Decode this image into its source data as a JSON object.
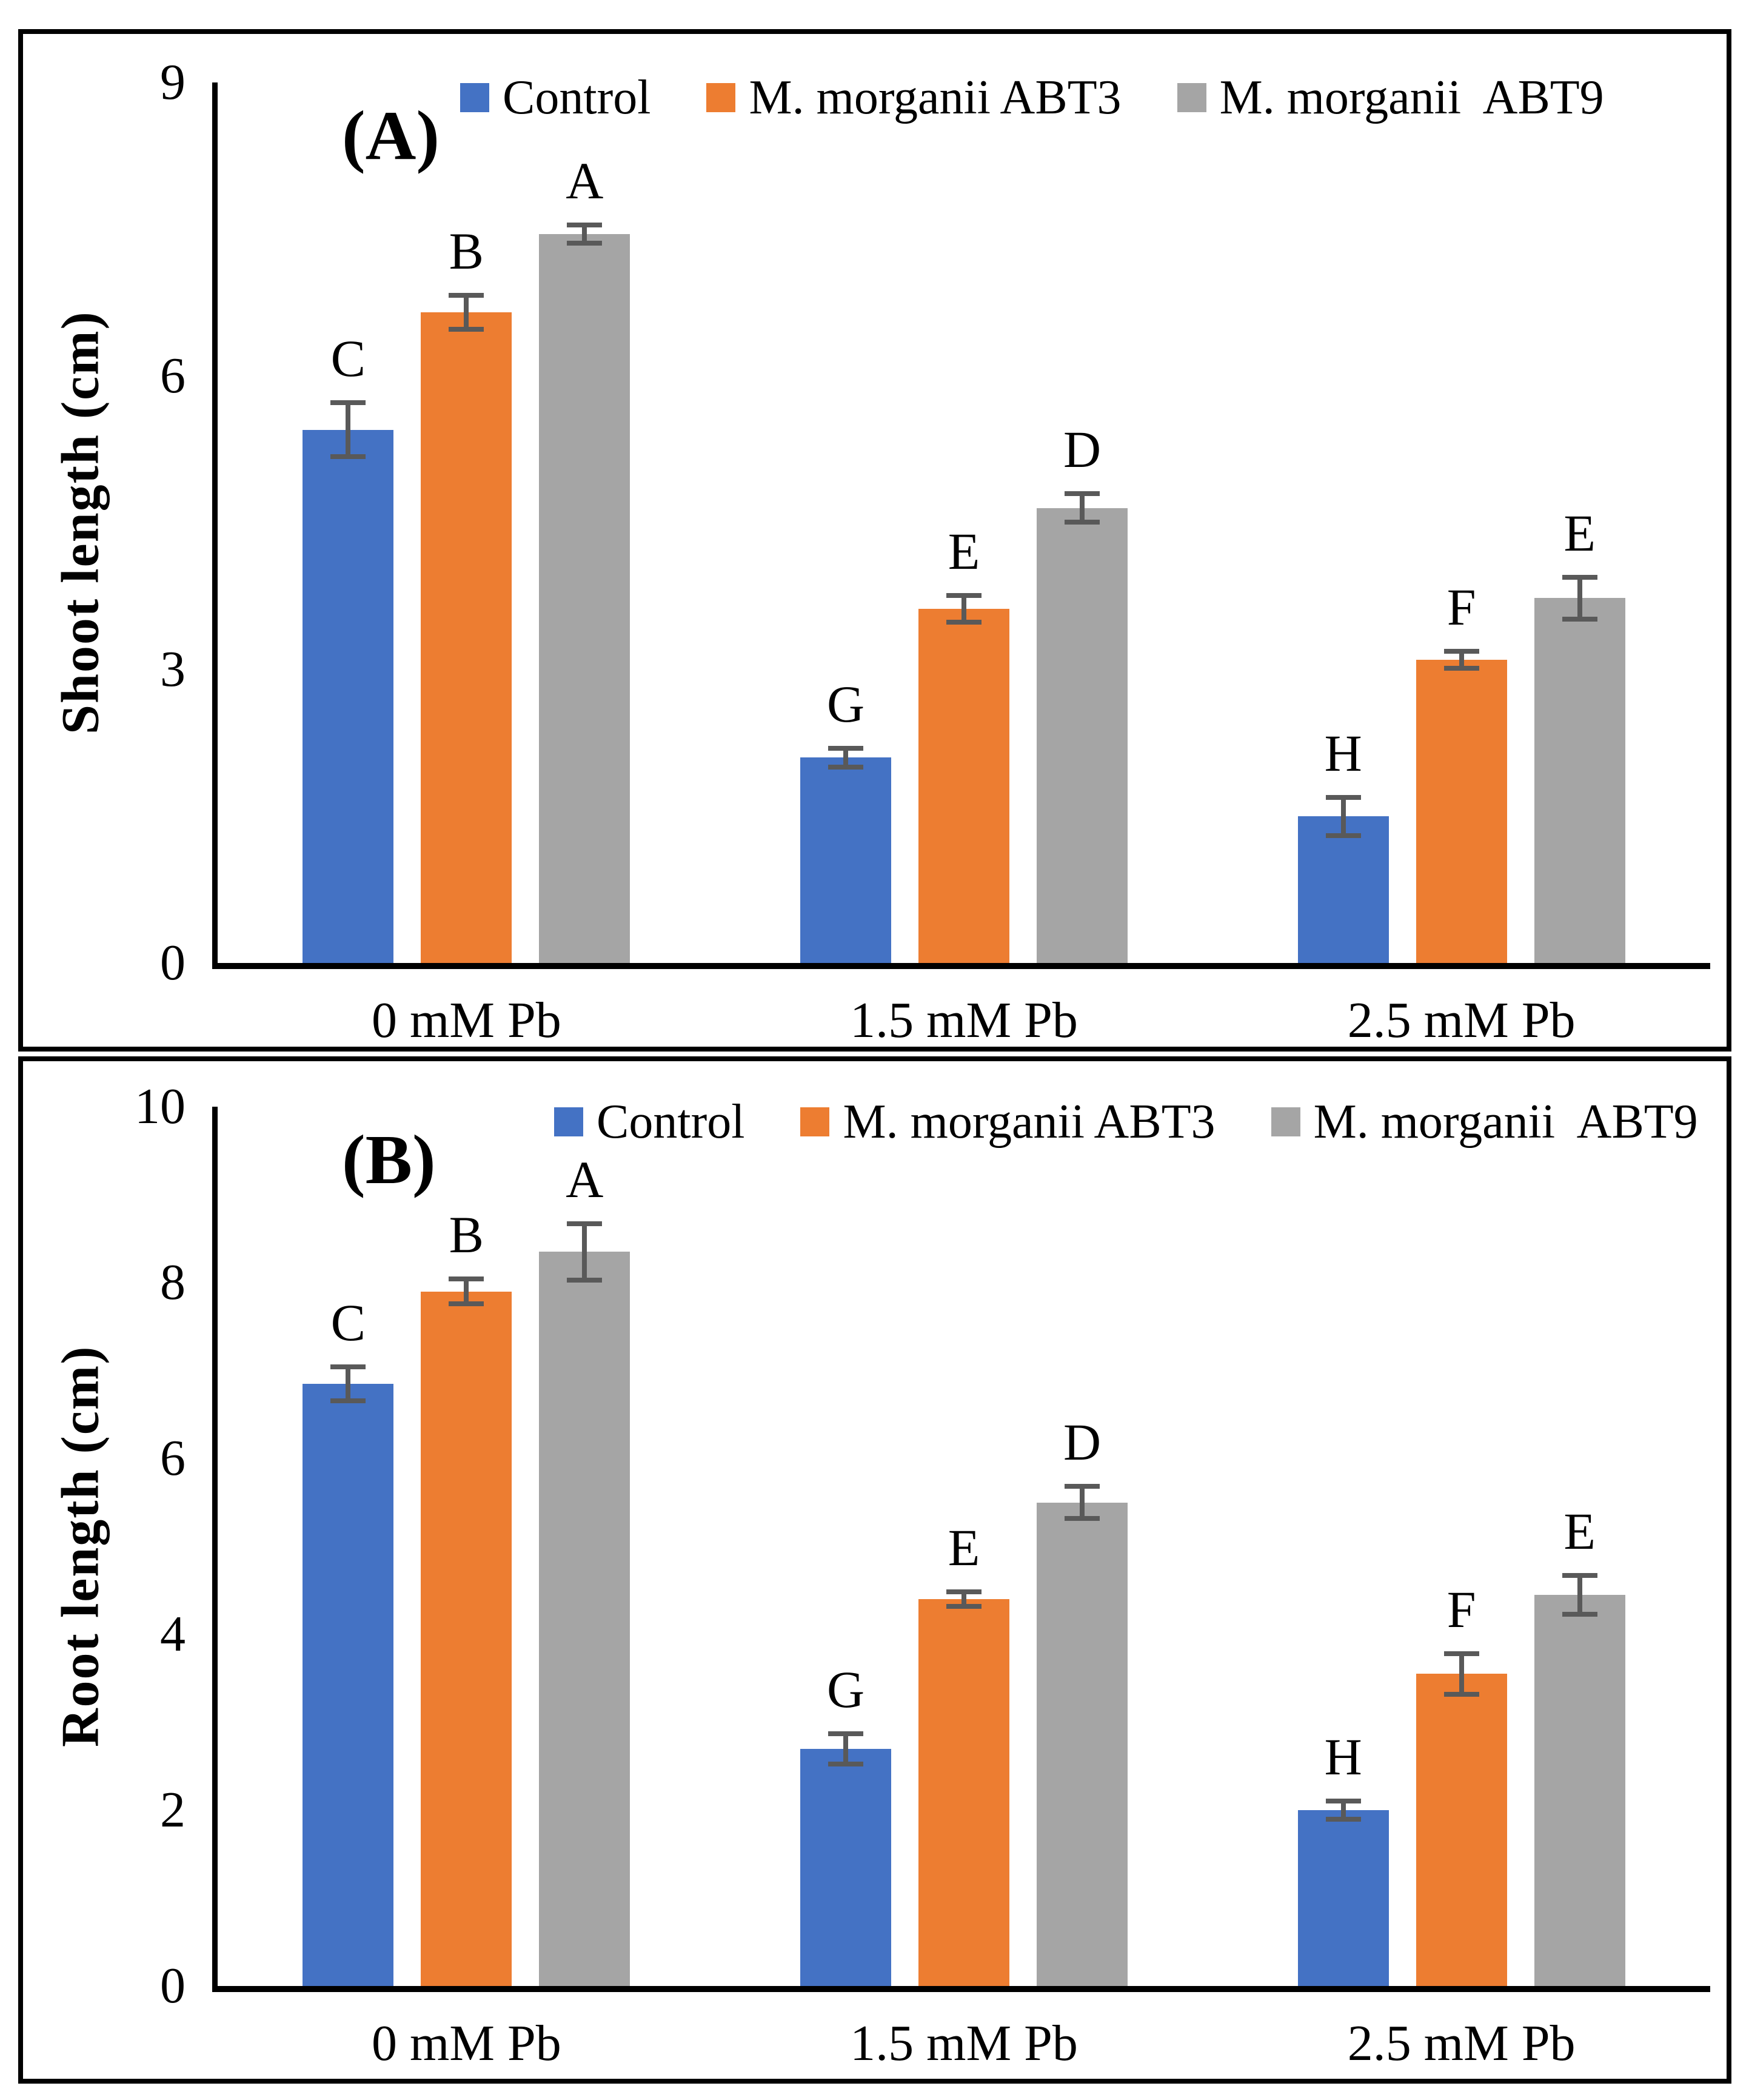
{
  "colors": {
    "control": "#4472C4",
    "abt3": "#ED7D31",
    "abt9": "#A5A5A5",
    "error_bar": "#595959",
    "axis": "#000000"
  },
  "chart_data": [
    {
      "type": "bar",
      "panel_label": "(A)",
      "ylabel": "Shoot length (cm)",
      "ylim": [
        0,
        9
      ],
      "yticks": [
        0,
        3,
        6,
        9
      ],
      "grid": false,
      "legend_position": "top-center",
      "categories": [
        "0 mM Pb",
        "1.5 mM Pb",
        "2.5 mM Pb"
      ],
      "series": [
        {
          "name": "Control",
          "color": "#4472C4",
          "values": [
            5.45,
            2.1,
            1.5
          ],
          "errors": [
            0.3,
            0.12,
            0.22
          ],
          "letters": [
            "C",
            "G",
            "H"
          ]
        },
        {
          "name": "M. morganii ABT3",
          "color": "#ED7D31",
          "values": [
            6.65,
            3.62,
            3.1
          ],
          "errors": [
            0.2,
            0.16,
            0.11
          ],
          "letters": [
            "B",
            "E",
            "F"
          ]
        },
        {
          "name": "M. morganii  ABT9",
          "color": "#A5A5A5",
          "values": [
            7.45,
            4.65,
            3.73
          ],
          "errors": [
            0.12,
            0.17,
            0.24
          ],
          "letters": [
            "A",
            "D",
            "E"
          ]
        }
      ]
    },
    {
      "type": "bar",
      "panel_label": "(B)",
      "ylabel": "Root length (cm)",
      "ylim": [
        0,
        10
      ],
      "yticks": [
        0,
        2,
        4,
        6,
        8,
        10
      ],
      "grid": false,
      "legend_position": "top-center",
      "categories": [
        "0 mM Pb",
        "1.5 mM Pb",
        "2.5 mM Pb"
      ],
      "series": [
        {
          "name": "Control",
          "color": "#4472C4",
          "values": [
            6.85,
            2.7,
            2.0
          ],
          "errors": [
            0.22,
            0.2,
            0.13
          ],
          "letters": [
            "C",
            "G",
            "H"
          ]
        },
        {
          "name": "M. morganii ABT3",
          "color": "#ED7D31",
          "values": [
            7.9,
            4.4,
            3.55
          ],
          "errors": [
            0.17,
            0.11,
            0.26
          ],
          "letters": [
            "B",
            "E",
            "F"
          ]
        },
        {
          "name": "M. morganii  ABT9",
          "color": "#A5A5A5",
          "values": [
            8.35,
            5.5,
            4.45
          ],
          "errors": [
            0.35,
            0.21,
            0.25
          ],
          "letters": [
            "A",
            "D",
            "E"
          ]
        }
      ]
    }
  ]
}
